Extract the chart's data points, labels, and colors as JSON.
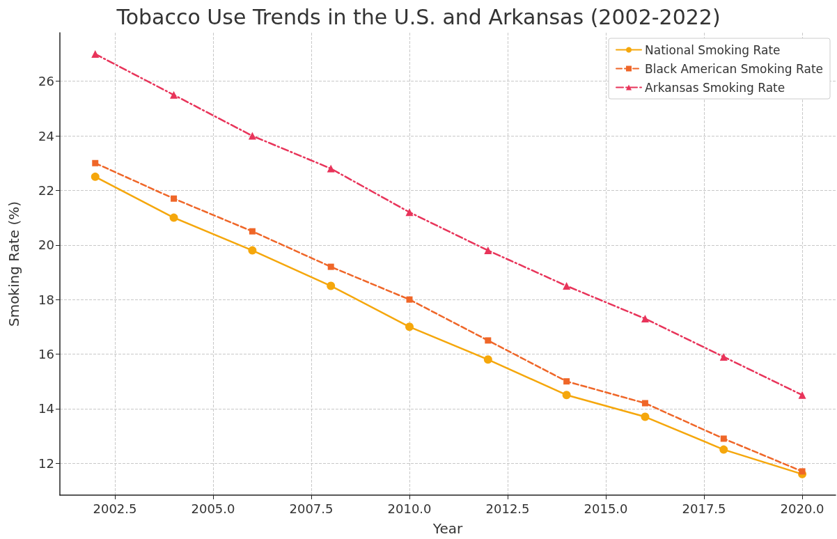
{
  "chart_data": {
    "type": "line",
    "title": "Tobacco Use Trends in the U.S. and Arkansas (2002-2022)",
    "xlabel": "Year",
    "ylabel": "Smoking Rate (%)",
    "x": [
      2002,
      2004,
      2006,
      2008,
      2010,
      2012,
      2014,
      2016,
      2018,
      2020
    ],
    "series": [
      {
        "name": "National Smoking Rate",
        "color": "#f5a70c",
        "marker": "circle",
        "line_style": "solid",
        "values": [
          22.5,
          21.0,
          19.8,
          18.5,
          17.0,
          15.8,
          14.5,
          13.7,
          12.5,
          11.6
        ]
      },
      {
        "name": "Black American Smoking Rate",
        "color": "#ef6628",
        "marker": "square",
        "line_style": "dashed",
        "values": [
          23.0,
          21.7,
          20.5,
          19.2,
          18.0,
          16.5,
          15.0,
          14.2,
          12.9,
          11.7
        ]
      },
      {
        "name": "Arkansas Smoking Rate",
        "color": "#e8345a",
        "marker": "triangle",
        "line_style": "dashdot",
        "values": [
          27.0,
          25.5,
          24.0,
          22.8,
          21.2,
          19.8,
          18.5,
          17.3,
          15.9,
          14.5
        ]
      }
    ],
    "xlim": [
      2001.1,
      2020.85
    ],
    "xticks": [
      {
        "value": 2002.5,
        "label": "2002.5"
      },
      {
        "value": 2005,
        "label": "2005.0"
      },
      {
        "value": 2007.5,
        "label": "2007.5"
      },
      {
        "value": 2010,
        "label": "2010.0"
      },
      {
        "value": 2012.5,
        "label": "2012.5"
      },
      {
        "value": 2015,
        "label": "2015.0"
      },
      {
        "value": 2017.5,
        "label": "2017.5"
      },
      {
        "value": 2020,
        "label": "2020.0"
      }
    ],
    "ylim": [
      10.83,
      27.78
    ],
    "yticks": [
      12,
      14,
      16,
      18,
      20,
      22,
      24,
      26
    ],
    "grid": true,
    "legend": "top right"
  }
}
